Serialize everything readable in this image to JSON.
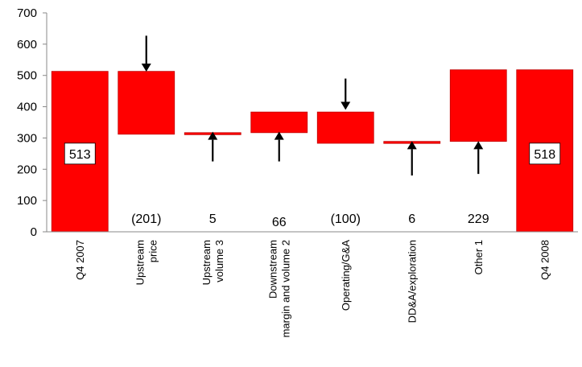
{
  "chart_data": {
    "type": "bar",
    "subtype": "waterfall",
    "categories": [
      [
        "Q4 2007"
      ],
      [
        "Upstream",
        "price"
      ],
      [
        "Upstream",
        "volume 3"
      ],
      [
        "Downstream",
        "margin and volume 2"
      ],
      [
        "Operating/G&A"
      ],
      [
        "DD&A/exploration"
      ],
      [
        "Other 1"
      ],
      [
        "Q4 2008"
      ]
    ],
    "bars": [
      {
        "base": 0,
        "top": 513,
        "kind": "total"
      },
      {
        "base": 312,
        "top": 513,
        "kind": "decrease"
      },
      {
        "base": 312,
        "top": 317,
        "kind": "increase"
      },
      {
        "base": 317,
        "top": 383,
        "kind": "increase"
      },
      {
        "base": 283,
        "top": 383,
        "kind": "decrease"
      },
      {
        "base": 283,
        "top": 289,
        "kind": "increase"
      },
      {
        "base": 289,
        "top": 518,
        "kind": "increase"
      },
      {
        "base": 0,
        "top": 518,
        "kind": "total"
      }
    ],
    "labels": [
      "513",
      "(201)",
      "5",
      "66",
      "(100)",
      "6",
      "229",
      "518"
    ],
    "arrows": [
      "",
      "down",
      "up",
      "up",
      "down",
      "up",
      "up",
      ""
    ],
    "ylim": [
      0,
      700
    ],
    "yticks": [
      0,
      100,
      200,
      300,
      400,
      500,
      600,
      700
    ],
    "grid": false,
    "legend": "none",
    "colors": {
      "bar": "#ff0000",
      "bar_edge": "#c00000",
      "axis": "#888888",
      "label_box": "#ffffff"
    }
  }
}
